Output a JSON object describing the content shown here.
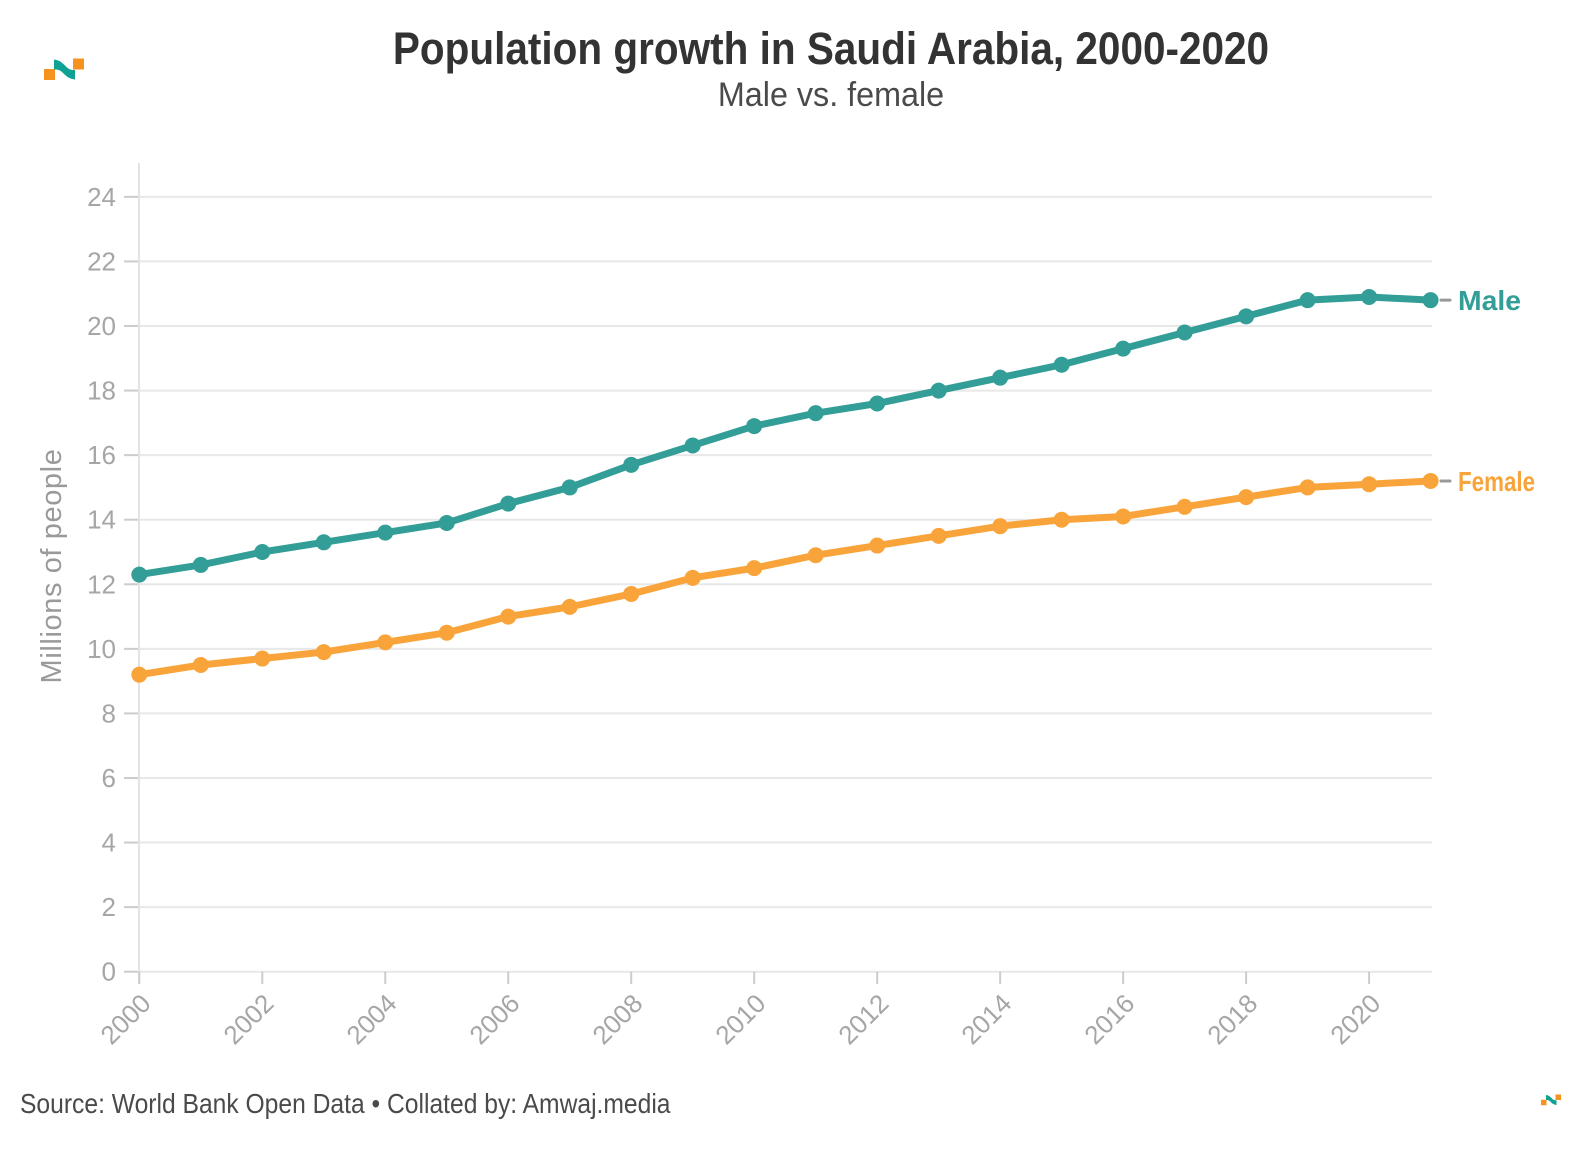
{
  "chart_data": {
    "type": "line",
    "title": "Population growth in Saudi Arabia, 2000-2020",
    "subtitle": "Male vs. female",
    "ylabel": "Millions of people",
    "xlabel": "",
    "x": [
      2000,
      2001,
      2002,
      2003,
      2004,
      2005,
      2006,
      2007,
      2008,
      2009,
      2010,
      2011,
      2012,
      2013,
      2014,
      2015,
      2016,
      2017,
      2018,
      2019,
      2020,
      2021
    ],
    "series": [
      {
        "name": "Male",
        "color": "#339E97",
        "values": [
          12.3,
          12.6,
          13.0,
          13.3,
          13.6,
          13.9,
          14.5,
          15.0,
          15.7,
          16.3,
          16.9,
          17.3,
          17.6,
          18.0,
          18.4,
          18.8,
          19.3,
          19.8,
          20.3,
          20.8,
          20.9,
          20.8
        ]
      },
      {
        "name": "Female",
        "color": "#F9A43B",
        "values": [
          9.2,
          9.5,
          9.7,
          9.9,
          10.2,
          10.5,
          11.0,
          11.3,
          11.7,
          12.2,
          12.5,
          12.9,
          13.2,
          13.5,
          13.8,
          14.0,
          14.1,
          14.4,
          14.7,
          15.0,
          15.1,
          15.2
        ]
      }
    ],
    "ylim": [
      0,
      24
    ],
    "yticks": [
      0,
      2,
      4,
      6,
      8,
      10,
      12,
      14,
      16,
      18,
      20,
      22,
      24
    ],
    "xticks": [
      2000,
      2002,
      2004,
      2006,
      2008,
      2010,
      2012,
      2014,
      2016,
      2018,
      2020
    ],
    "grid": "horizontal",
    "legend_position": "end-of-line-labels"
  },
  "footer": {
    "text": "Source: World Bank Open Data • Collated by: Amwaj.media"
  },
  "branding": {
    "logo_name": "amwaj-media-logo",
    "orange": "#F6921E",
    "teal": "#0FA294"
  },
  "style": {
    "title_color": "#333333",
    "subtitle_color": "#4a4a4a",
    "footer_color": "#4a4a4a",
    "grid_color": "#e8e8e8",
    "axis_line_color": "#e3e3e3",
    "tick_color": "#cccccc",
    "tick_label_color": "#a6a6a6",
    "axis_title_color": "#9a9a9a",
    "end_dash_color": "#999999",
    "background": "#ffffff"
  }
}
